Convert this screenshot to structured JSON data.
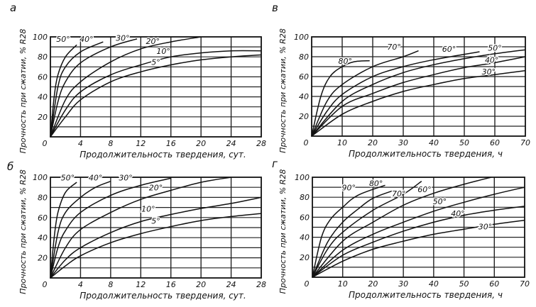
{
  "chart_data": [
    {
      "panel": "а",
      "type": "line",
      "xlabel": "Продолжительность твердения, сут.",
      "ylabel": "Прочность при сжатии, % R28",
      "xlim": [
        0,
        28
      ],
      "ylim": [
        0,
        100
      ],
      "xticks": [
        0,
        4,
        8,
        12,
        16,
        20,
        24,
        28
      ],
      "yticks": [
        20,
        40,
        60,
        80,
        100
      ],
      "grid": true,
      "series": [
        {
          "name": "50°",
          "x": [
            0,
            0.5,
            1,
            2,
            3.5
          ],
          "y": [
            0,
            40,
            62,
            80,
            92
          ]
        },
        {
          "name": "40°",
          "x": [
            0,
            1,
            2,
            4,
            7
          ],
          "y": [
            0,
            50,
            70,
            85,
            95
          ]
        },
        {
          "name": "30°",
          "x": [
            0,
            1,
            2,
            4,
            8,
            11.5
          ],
          "y": [
            0,
            35,
            55,
            74,
            90,
            98
          ]
        },
        {
          "name": "20°",
          "x": [
            0,
            2,
            4,
            8,
            12,
            16,
            20
          ],
          "y": [
            0,
            37,
            55,
            75,
            88,
            95,
            100
          ]
        },
        {
          "name": "10°",
          "x": [
            0,
            2,
            4,
            8,
            12,
            16,
            20,
            24,
            28
          ],
          "y": [
            0,
            27,
            45,
            62,
            72,
            80,
            84,
            86,
            86
          ]
        },
        {
          "name": "5°",
          "x": [
            0,
            2,
            4,
            8,
            12,
            16,
            20,
            24,
            28
          ],
          "y": [
            0,
            20,
            37,
            55,
            65,
            72,
            77,
            80,
            82
          ]
        }
      ]
    },
    {
      "panel": "в",
      "type": "line",
      "xlabel": "Продолжительность твердения, ч",
      "ylabel": "Прочность при сжатии, % R28",
      "xlim": [
        0,
        70
      ],
      "ylim": [
        0,
        100
      ],
      "xticks": [
        0,
        10,
        20,
        30,
        40,
        50,
        60,
        70
      ],
      "yticks": [
        20,
        40,
        60,
        80,
        100
      ],
      "grid": true,
      "series": [
        {
          "name": "80°",
          "x": [
            0,
            3,
            6,
            10,
            14,
            19
          ],
          "y": [
            0,
            40,
            60,
            70,
            75,
            76
          ]
        },
        {
          "name": "70°",
          "x": [
            0,
            5,
            10,
            20,
            30,
            35
          ],
          "y": [
            0,
            35,
            52,
            70,
            80,
            86
          ]
        },
        {
          "name": "60°",
          "x": [
            0,
            5,
            10,
            20,
            30,
            40,
            55
          ],
          "y": [
            0,
            25,
            42,
            60,
            70,
            77,
            85
          ]
        },
        {
          "name": "50°",
          "x": [
            0,
            10,
            20,
            30,
            40,
            50,
            60,
            70
          ],
          "y": [
            0,
            35,
            52,
            64,
            72,
            78,
            83,
            87
          ]
        },
        {
          "name": "40°",
          "x": [
            0,
            10,
            20,
            30,
            40,
            50,
            60,
            70
          ],
          "y": [
            0,
            30,
            43,
            54,
            62,
            69,
            74,
            80
          ]
        },
        {
          "name": "30°",
          "x": [
            0,
            10,
            20,
            30,
            40,
            50,
            60,
            70
          ],
          "y": [
            0,
            22,
            35,
            45,
            52,
            58,
            62,
            66
          ]
        }
      ]
    },
    {
      "panel": "б",
      "type": "line",
      "xlabel": "Продолжительность твердения, сут.",
      "ylabel": "Прочность при сжатии, % R28",
      "xlim": [
        0,
        28
      ],
      "ylim": [
        0,
        100
      ],
      "xticks": [
        0,
        4,
        8,
        12,
        16,
        20,
        24,
        28
      ],
      "yticks": [
        20,
        40,
        60,
        80,
        100
      ],
      "grid": true,
      "series": [
        {
          "name": "50°",
          "x": [
            0,
            0.5,
            1,
            2,
            3.5
          ],
          "y": [
            0,
            40,
            65,
            85,
            95
          ]
        },
        {
          "name": "40°",
          "x": [
            0,
            1,
            2,
            4,
            6,
            8
          ],
          "y": [
            0,
            45,
            65,
            80,
            90,
            96
          ]
        },
        {
          "name": "30°",
          "x": [
            0,
            1,
            2,
            4,
            8,
            12,
            16
          ],
          "y": [
            0,
            30,
            47,
            65,
            82,
            92,
            99
          ]
        },
        {
          "name": "20°",
          "x": [
            0,
            2,
            4,
            8,
            12,
            16,
            20,
            24
          ],
          "y": [
            0,
            30,
            48,
            65,
            78,
            87,
            95,
            100
          ]
        },
        {
          "name": "10°",
          "x": [
            0,
            2,
            4,
            8,
            12,
            16,
            20,
            24,
            28
          ],
          "y": [
            0,
            18,
            30,
            45,
            56,
            63,
            69,
            74,
            80
          ]
        },
        {
          "name": "5°",
          "x": [
            0,
            2,
            4,
            8,
            12,
            16,
            20,
            24,
            28
          ],
          "y": [
            0,
            12,
            22,
            35,
            44,
            51,
            57,
            61,
            64
          ]
        }
      ]
    },
    {
      "panel": "г",
      "type": "line",
      "xlabel": "Продолжительность твердения, ч",
      "ylabel": "Прочность при сжатии, % R28",
      "xlim": [
        0,
        70
      ],
      "ylim": [
        0,
        100
      ],
      "xticks": [
        0,
        10,
        20,
        30,
        40,
        50,
        60,
        70
      ],
      "yticks": [
        20,
        40,
        60,
        80,
        100
      ],
      "grid": true,
      "series": [
        {
          "name": "90°",
          "x": [
            0,
            3,
            6,
            10,
            15,
            24
          ],
          "y": [
            0,
            40,
            58,
            70,
            82,
            92
          ]
        },
        {
          "name": "80°",
          "x": [
            0,
            5,
            10,
            15,
            20,
            27
          ],
          "y": [
            0,
            35,
            55,
            68,
            79,
            87
          ]
        },
        {
          "name": "70°",
          "x": [
            0,
            5,
            10,
            20,
            30,
            36
          ],
          "y": [
            0,
            28,
            45,
            67,
            83,
            96
          ]
        },
        {
          "name": "60°",
          "x": [
            0,
            10,
            20,
            30,
            40,
            50,
            59
          ],
          "y": [
            0,
            36,
            55,
            72,
            84,
            93,
            100
          ]
        },
        {
          "name": "50°",
          "x": [
            0,
            10,
            20,
            30,
            40,
            50,
            60,
            70
          ],
          "y": [
            0,
            27,
            43,
            55,
            66,
            75,
            83,
            90
          ]
        },
        {
          "name": "40°",
          "x": [
            0,
            10,
            20,
            30,
            40,
            50,
            60,
            70
          ],
          "y": [
            0,
            22,
            35,
            46,
            55,
            62,
            67,
            71
          ]
        },
        {
          "name": "30°",
          "x": [
            0,
            10,
            20,
            30,
            40,
            50,
            60,
            70
          ],
          "y": [
            0,
            16,
            28,
            36,
            43,
            48,
            53,
            57
          ]
        }
      ]
    }
  ]
}
